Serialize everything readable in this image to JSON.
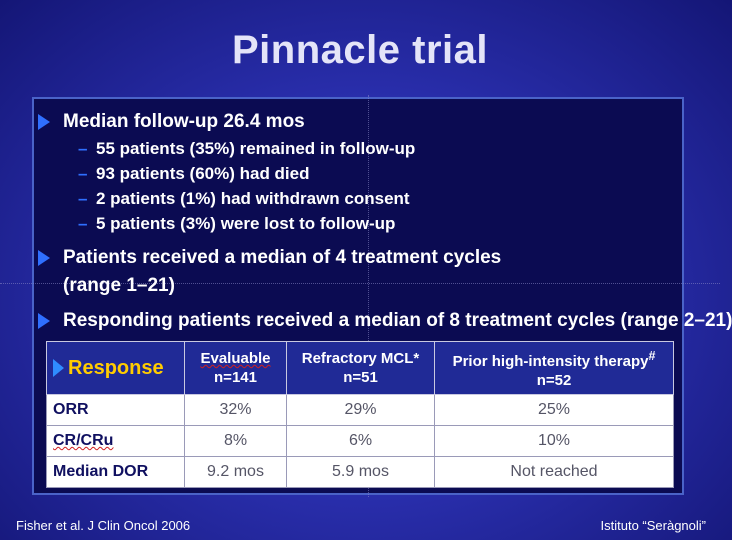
{
  "title": "Pinnacle trial",
  "bullets": {
    "b1": "Median follow-up 26.4 mos",
    "sub": [
      "55 patients (35%) remained in follow-up",
      "93 patients (60%) had died",
      "2 patients (1%) had withdrawn consent",
      "5 patients (3%) were lost to follow-up"
    ],
    "b2_line1": "Patients received a median of 4 treatment cycles",
    "b2_line2": "(range 1–21)",
    "b3": "Responding patients received a median of 8 treatment cycles (range 2–21)"
  },
  "table": {
    "corner": "Response",
    "columns": [
      {
        "line1": "Evaluable",
        "line2": "n=141"
      },
      {
        "line1": "Refractory MCL*",
        "line2": "n=51"
      },
      {
        "line1": "Prior high-intensity therapy",
        "sup": "#",
        "line2": "n=52"
      }
    ],
    "rows": [
      {
        "label": "ORR",
        "cells": [
          "32%",
          "29%",
          "25%"
        ]
      },
      {
        "label": "CR/CRu",
        "cells": [
          "8%",
          "6%",
          "10%"
        ]
      },
      {
        "label": "Median DOR",
        "cells": [
          "9.2 mos",
          "5.9 mos",
          "Not reached"
        ]
      }
    ]
  },
  "footer": {
    "citation": "Fisher et al. J Clin Oncol 2006",
    "institution": "Istituto “Seràgnoli”"
  },
  "colors": {
    "background": "#2a2fae",
    "panel": "#0b0b52",
    "bullet_arrow": "#2f6fff",
    "table_header": "#202a96",
    "response_label": "#ffcc00"
  }
}
